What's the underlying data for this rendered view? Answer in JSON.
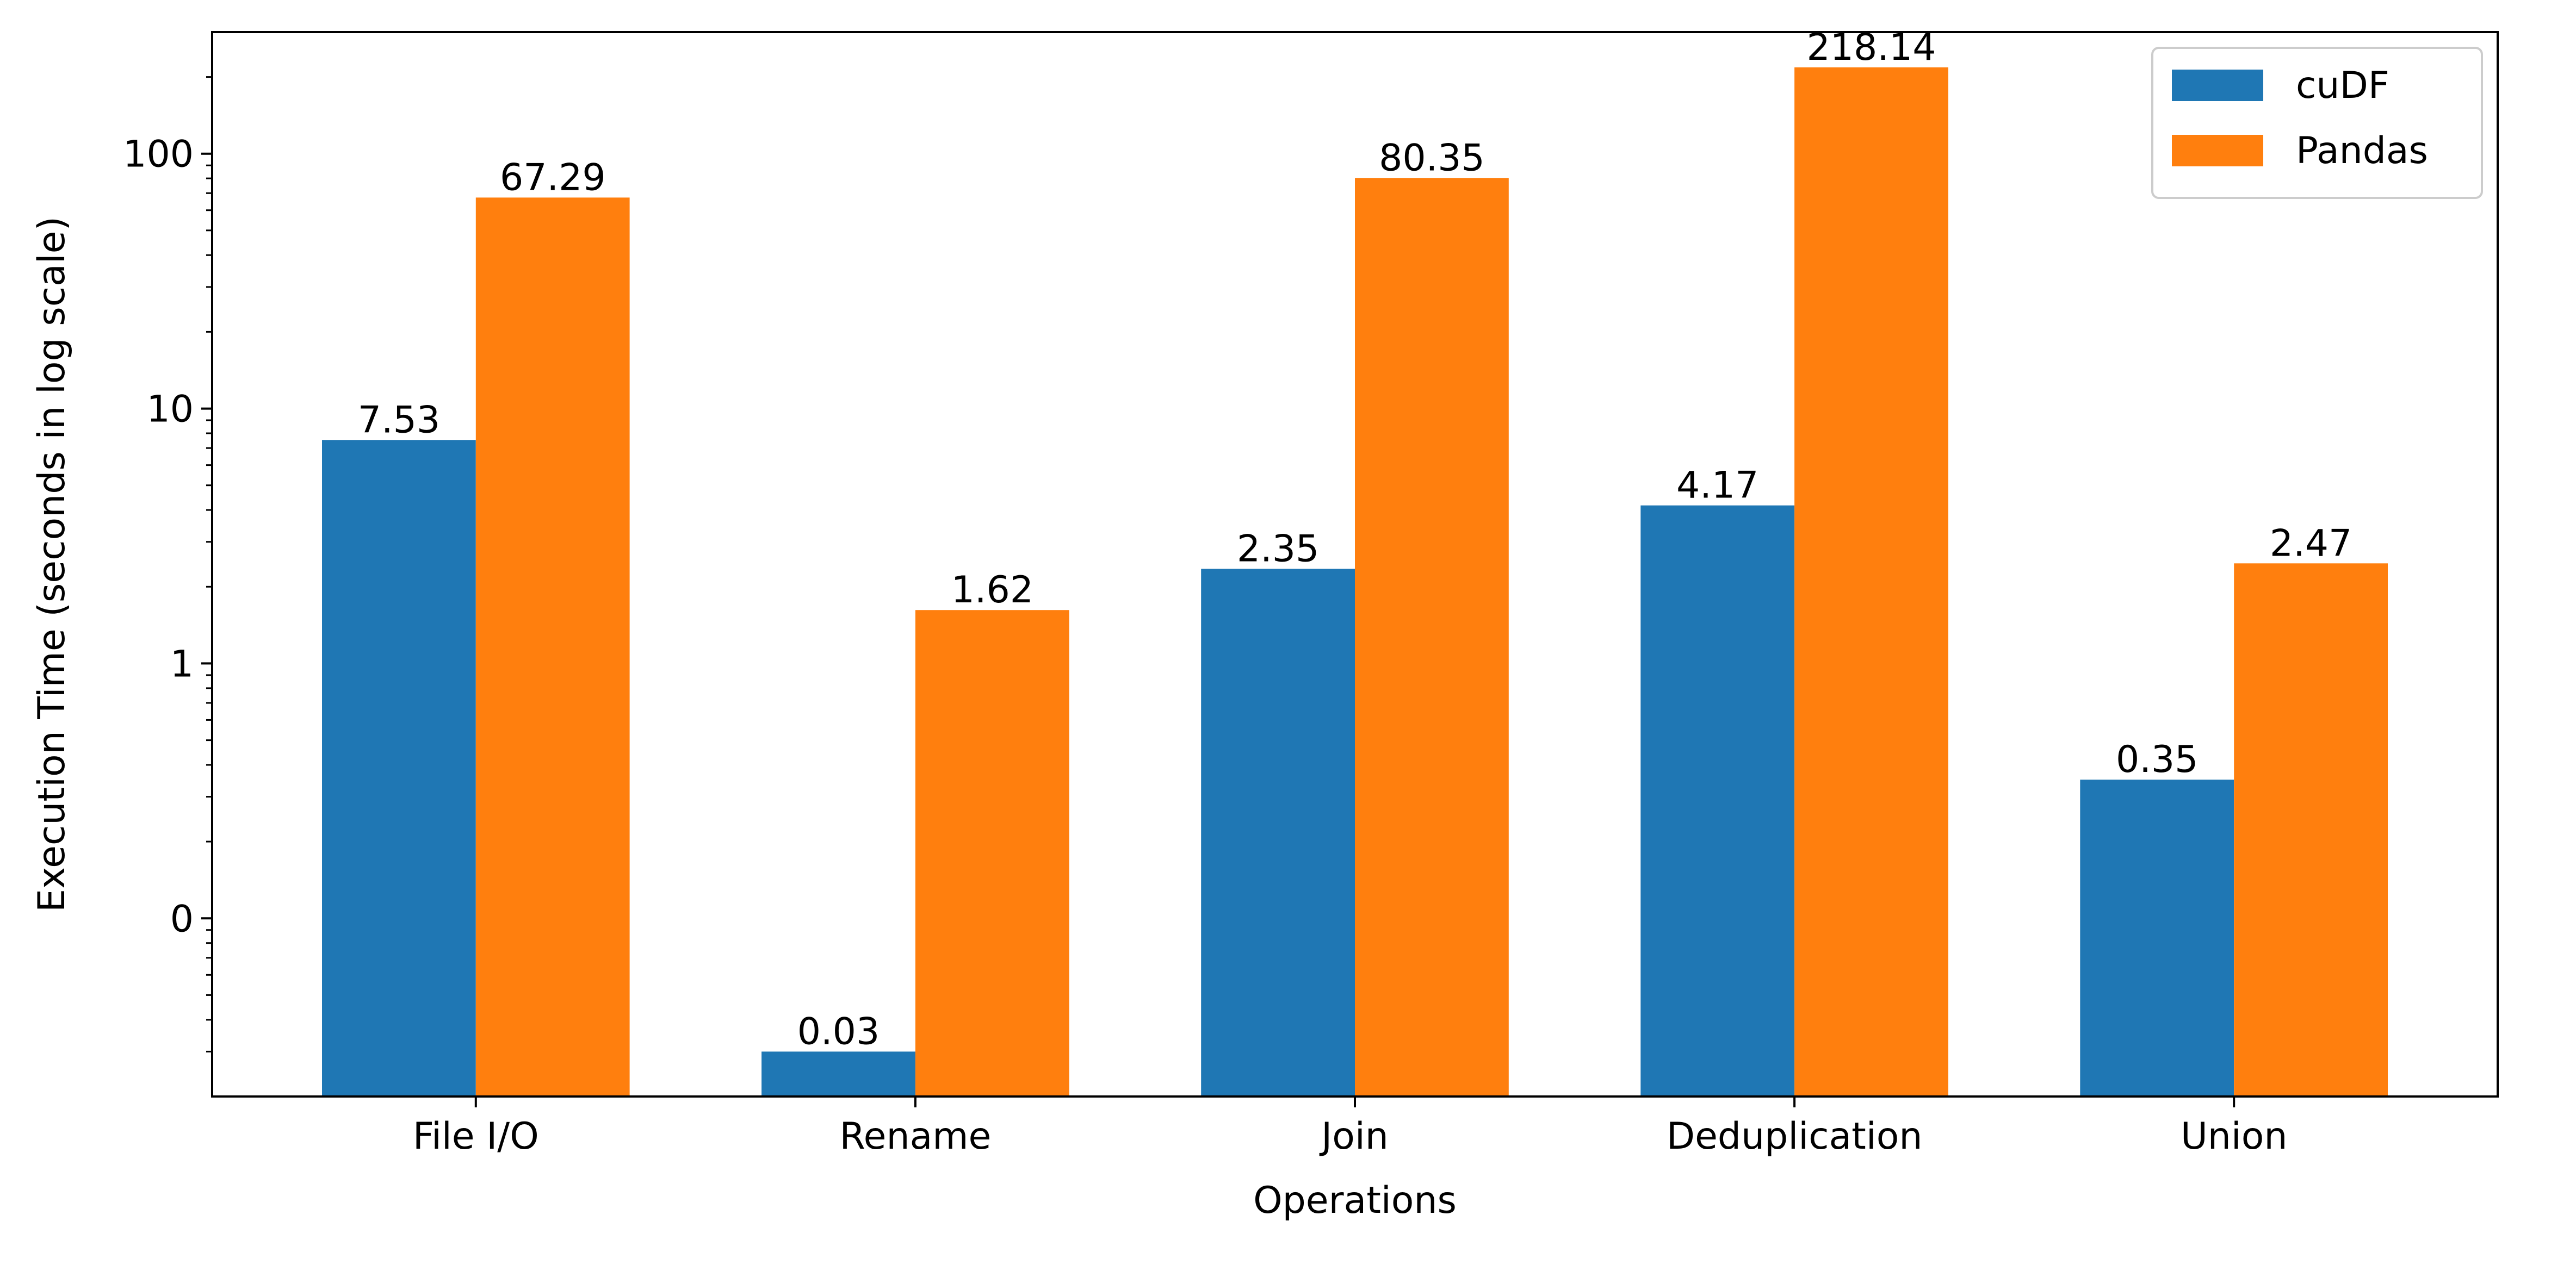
{
  "chart_data": {
    "type": "bar",
    "title": "",
    "xlabel": "Operations",
    "ylabel": "Execution Time (seconds in log scale)",
    "yscale": "log",
    "ylim": [
      0.02,
      300
    ],
    "grid": false,
    "legend_position": "top-right",
    "categories": [
      "File I/O",
      "Rename",
      "Join",
      "Deduplication",
      "Union"
    ],
    "series": [
      {
        "name": "cuDF",
        "color": "#1f77b4",
        "values": [
          7.53,
          0.03,
          2.35,
          4.17,
          0.35
        ],
        "labels": [
          "7.53",
          "0.03",
          "2.35",
          "4.17",
          "0.35"
        ]
      },
      {
        "name": "Pandas",
        "color": "#ff7f0e",
        "values": [
          67.29,
          1.62,
          80.35,
          218.14,
          2.47
        ],
        "labels": [
          "67.29",
          "1.62",
          "80.35",
          "218.14",
          "2.47"
        ]
      }
    ],
    "y_ticks": [
      {
        "value": 0.1,
        "label": "0"
      },
      {
        "value": 1,
        "label": "1"
      },
      {
        "value": 10,
        "label": "10"
      },
      {
        "value": 100,
        "label": "100"
      }
    ]
  }
}
